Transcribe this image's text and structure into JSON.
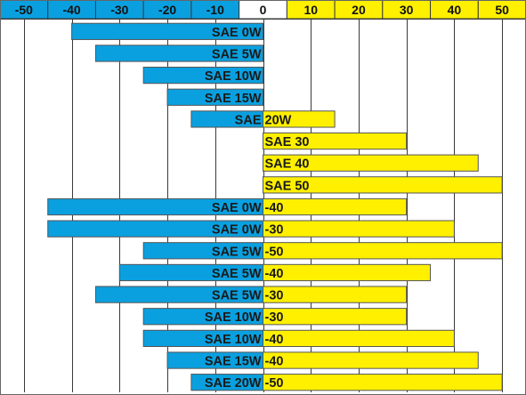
{
  "chart_data": {
    "type": "bar",
    "orientation": "horizontal",
    "x_ticks": [
      -50,
      -40,
      -30,
      -20,
      -10,
      0,
      10,
      20,
      30,
      40,
      50
    ],
    "xlim": [
      -55,
      55
    ],
    "grid": true,
    "colors": {
      "negative": "#0AA0E0",
      "positive": "#FFF000",
      "zero_cell": "#FFFFFF",
      "grid": "#3a3a3a",
      "border": "#666666"
    },
    "rows": [
      {
        "grade": "SAE 0W",
        "cold_label": "SAE 0W",
        "hot_label": "",
        "min": -40,
        "max": 0
      },
      {
        "grade": "SAE 5W",
        "cold_label": "SAE 5W",
        "hot_label": "",
        "min": -35,
        "max": 0
      },
      {
        "grade": "SAE 10W",
        "cold_label": "SAE 10W",
        "hot_label": "",
        "min": -25,
        "max": 0
      },
      {
        "grade": "SAE 15W",
        "cold_label": "SAE 15W",
        "hot_label": "",
        "min": -20,
        "max": 0
      },
      {
        "grade": "SAE 20W",
        "cold_label": "SAE",
        "hot_label": "20W",
        "min": -15,
        "max": 15
      },
      {
        "grade": "SAE 30",
        "cold_label": "",
        "hot_label": "SAE 30",
        "min": 0,
        "max": 30
      },
      {
        "grade": "SAE 40",
        "cold_label": "",
        "hot_label": "SAE 40",
        "min": 0,
        "max": 45
      },
      {
        "grade": "SAE 50",
        "cold_label": "",
        "hot_label": "SAE 50",
        "min": 0,
        "max": 50
      },
      {
        "grade": "SAE 0W-40",
        "cold_label": "SAE 0W",
        "hot_label": "-40",
        "min": -45,
        "max": 30
      },
      {
        "grade": "SAE 0W-30",
        "cold_label": "SAE 0W",
        "hot_label": "-30",
        "min": -45,
        "max": 40
      },
      {
        "grade": "SAE 5W-50",
        "cold_label": "SAE 5W",
        "hot_label": "-50",
        "min": -25,
        "max": 50
      },
      {
        "grade": "SAE 5W-40",
        "cold_label": "SAE 5W",
        "hot_label": "-40",
        "min": -30,
        "max": 35
      },
      {
        "grade": "SAE 5W-30",
        "cold_label": "SAE 5W",
        "hot_label": "-30",
        "min": -35,
        "max": 30
      },
      {
        "grade": "SAE 10W-30",
        "cold_label": "SAE 10W",
        "hot_label": "-30",
        "min": -25,
        "max": 30
      },
      {
        "grade": "SAE 10W-40",
        "cold_label": "SAE 10W",
        "hot_label": "-40",
        "min": -25,
        "max": 40
      },
      {
        "grade": "SAE 15W-40",
        "cold_label": "SAE 15W",
        "hot_label": "-40",
        "min": -20,
        "max": 45
      },
      {
        "grade": "SAE 20W-50",
        "cold_label": "SAE 20W",
        "hot_label": "-50",
        "min": -15,
        "max": 50
      }
    ]
  }
}
